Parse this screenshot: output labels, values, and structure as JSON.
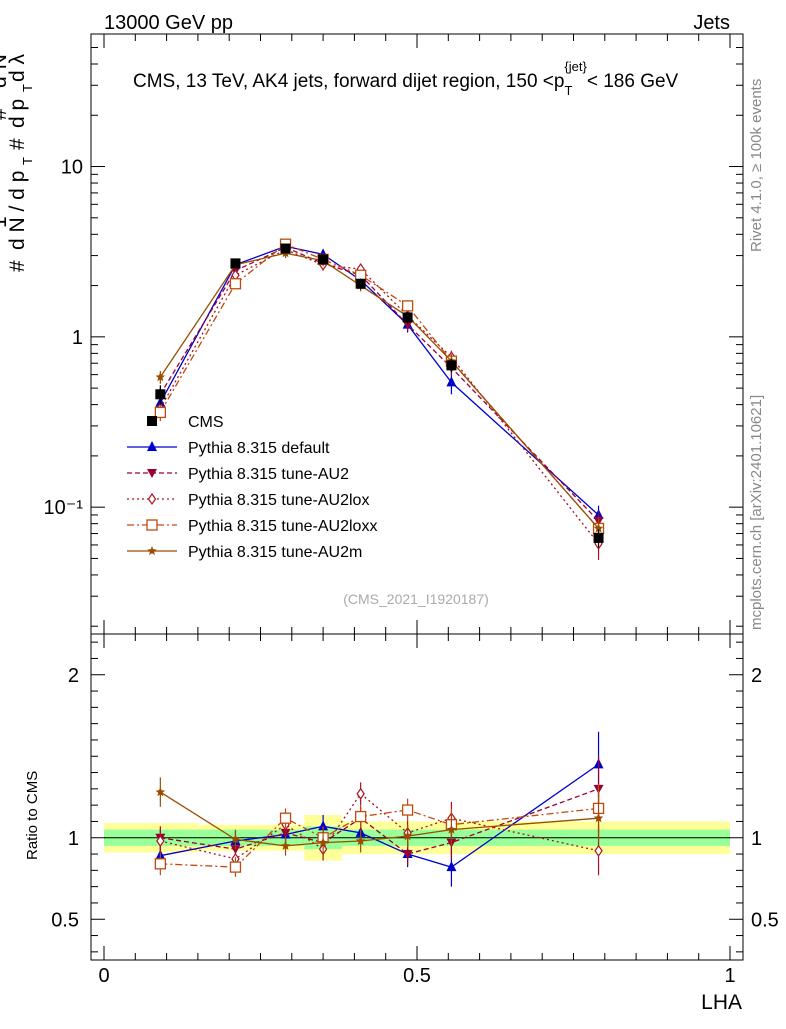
{
  "header": {
    "left": "13000 GeV pp",
    "right": "Jets",
    "title": "CMS, 13 TeV, AK4 jets, forward dijet region, 150 <",
    "title_pt": "p",
    "title_sub": "T",
    "title_sup": "{jet}",
    "title_end": "< 186 GeV"
  },
  "side": {
    "rivet": "Rivet 4.1.0, ≥ 100k events",
    "mcplots": "mcplots.cern.ch [arXiv:2401.10621]"
  },
  "analysis_tag": "(CMS_2021_I1920187)",
  "colors": {
    "cms": "#000000",
    "default": "#0000cc",
    "au2": "#990033",
    "au2lox": "#aa1122",
    "au2loxx": "#c04a10",
    "au2m": "#9a4d00",
    "band_inner": "#99ff99",
    "band_outer": "#ffff99"
  },
  "chart_data": [
    {
      "type": "scatter",
      "title": "CMS, 13 TeV, AK4 jets, forward dijet region, 150 < pT{jet} < 186 GeV",
      "ylabel": "1/dN/dpT · d²N/dpT dλ",
      "yscale": "log",
      "xlim": [
        0,
        1
      ],
      "ylim": [
        0.018,
        60
      ],
      "ytick_labels": [
        "10⁻¹",
        "1",
        "10"
      ],
      "x": [
        0.09,
        0.21,
        0.29,
        0.35,
        0.41,
        0.485,
        0.555,
        0.79
      ],
      "series": [
        {
          "name": "CMS",
          "key": "cms",
          "marker": "square",
          "values": [
            0.46,
            2.7,
            3.3,
            2.85,
            2.05,
            1.3,
            0.68,
            0.066
          ],
          "errors": [
            0.06,
            0.15,
            0.2,
            0.2,
            0.15,
            0.1,
            0.06,
            0.008
          ]
        },
        {
          "name": "Pythia 8.315 default",
          "key": "default",
          "marker": "triangle-up",
          "values": [
            0.41,
            2.65,
            3.4,
            3.05,
            2.15,
            1.18,
            0.54,
            0.09
          ],
          "errors": [
            0.04,
            0.15,
            0.2,
            0.2,
            0.15,
            0.12,
            0.08,
            0.012
          ]
        },
        {
          "name": "Pythia 8.315 tune-AU2",
          "key": "au2",
          "marker": "triangle-down",
          "values": [
            0.46,
            2.45,
            3.35,
            2.7,
            2.3,
            1.18,
            0.66,
            0.083
          ],
          "errors": [
            0.04,
            0.15,
            0.2,
            0.2,
            0.15,
            0.1,
            0.07,
            0.012
          ]
        },
        {
          "name": "Pythia 8.315 tune-AU2lox",
          "key": "au2lox",
          "marker": "diamond-open",
          "values": [
            0.38,
            2.3,
            3.25,
            2.65,
            2.5,
            1.33,
            0.76,
            0.061
          ],
          "errors": [
            0.04,
            0.15,
            0.2,
            0.2,
            0.15,
            0.1,
            0.07,
            0.012
          ]
        },
        {
          "name": "Pythia 8.315 tune-AU2loxx",
          "key": "au2loxx",
          "marker": "square-open",
          "values": [
            0.36,
            2.05,
            3.5,
            2.85,
            2.3,
            1.52,
            0.72,
            0.075
          ],
          "errors": [
            0.04,
            0.12,
            0.2,
            0.2,
            0.15,
            0.1,
            0.07,
            0.012
          ]
        },
        {
          "name": "Pythia 8.315 tune-AU2m",
          "key": "au2m",
          "marker": "star",
          "values": [
            0.58,
            2.65,
            3.1,
            2.8,
            2.0,
            1.32,
            0.72,
            0.075
          ],
          "errors": [
            0.05,
            0.15,
            0.2,
            0.2,
            0.15,
            0.1,
            0.07,
            0.012
          ]
        }
      ]
    },
    {
      "type": "scatter",
      "ylabel": "Ratio to CMS",
      "xlabel": "LHA",
      "xlim": [
        0,
        1
      ],
      "ylim": [
        0.25,
        2.25
      ],
      "ytick_labels": [
        "0.5",
        "1",
        "2"
      ],
      "xtick_labels": [
        "0",
        "0.5",
        "1"
      ],
      "band_edges": [
        0,
        0.15,
        0.25,
        0.32,
        0.38,
        0.45,
        0.52,
        0.6,
        1.0
      ],
      "band_inner": [
        0.05,
        0.05,
        0.05,
        0.07,
        0.05,
        0.05,
        0.05,
        0.05
      ],
      "band_outer": [
        0.09,
        0.08,
        0.08,
        0.14,
        0.1,
        0.1,
        0.1,
        0.1
      ],
      "series": [
        {
          "key": "default",
          "values": [
            0.89,
            0.98,
            1.02,
            1.07,
            1.03,
            0.9,
            0.82,
            1.45
          ],
          "errors": [
            0.06,
            0.06,
            0.06,
            0.07,
            0.06,
            0.08,
            0.12,
            0.2
          ]
        },
        {
          "key": "au2",
          "values": [
            1.0,
            0.93,
            1.03,
            0.97,
            1.12,
            0.9,
            0.97,
            1.3
          ],
          "errors": [
            0.07,
            0.06,
            0.06,
            0.07,
            0.07,
            0.07,
            0.1,
            0.2
          ]
        },
        {
          "key": "au2lox",
          "values": [
            0.98,
            0.87,
            1.08,
            0.93,
            1.27,
            1.03,
            1.12,
            0.92
          ],
          "errors": [
            0.07,
            0.06,
            0.06,
            0.07,
            0.07,
            0.07,
            0.1,
            0.15
          ]
        },
        {
          "key": "au2loxx",
          "values": [
            0.84,
            0.82,
            1.12,
            1.0,
            1.13,
            1.17,
            1.08,
            1.18
          ],
          "errors": [
            0.07,
            0.06,
            0.06,
            0.07,
            0.07,
            0.07,
            0.1,
            0.15
          ]
        },
        {
          "key": "au2m",
          "values": [
            1.28,
            0.99,
            0.95,
            0.97,
            0.98,
            1.01,
            1.05,
            1.12
          ],
          "errors": [
            0.09,
            0.06,
            0.06,
            0.07,
            0.07,
            0.07,
            0.1,
            0.15
          ]
        }
      ]
    }
  ]
}
